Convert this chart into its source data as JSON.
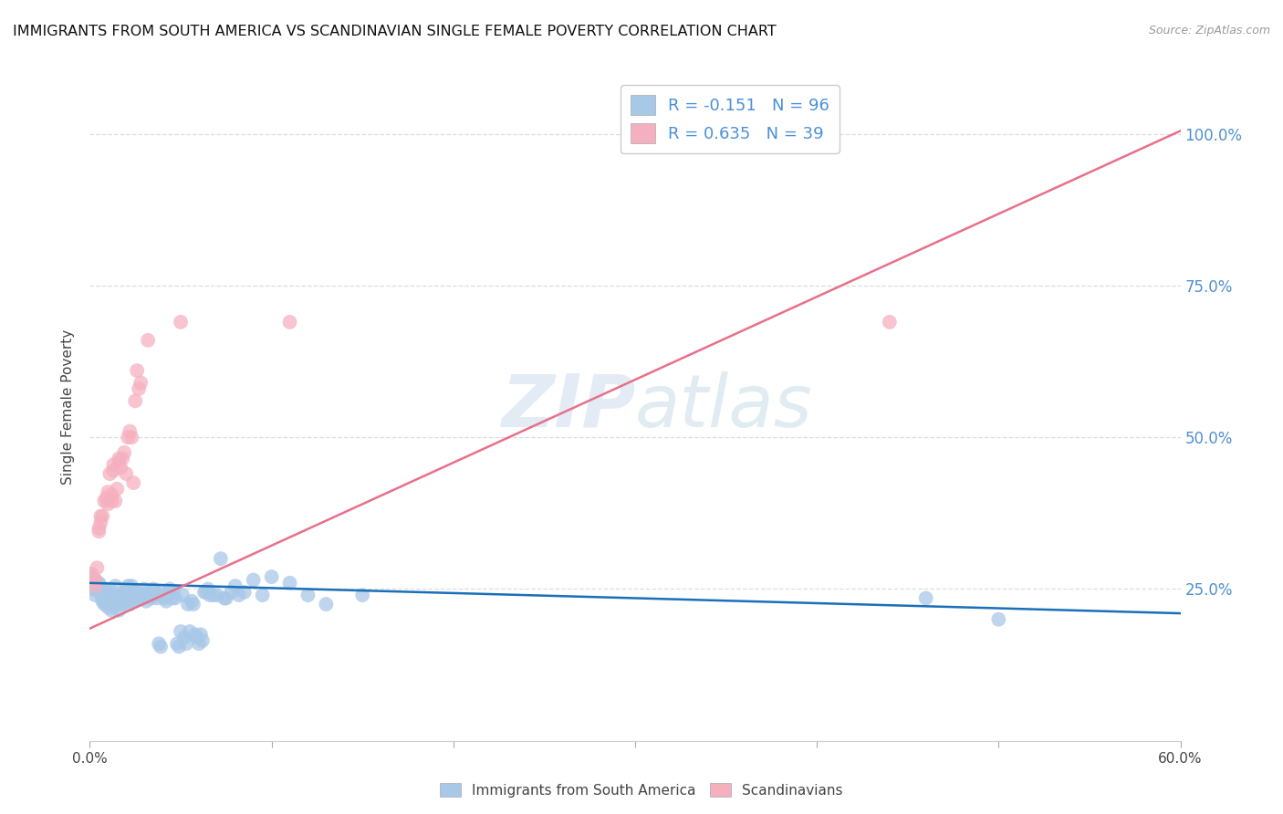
{
  "title": "IMMIGRANTS FROM SOUTH AMERICA VS SCANDINAVIAN SINGLE FEMALE POVERTY CORRELATION CHART",
  "source": "Source: ZipAtlas.com",
  "ylabel": "Single Female Poverty",
  "watermark": "ZIPatlas",
  "legend_blue_label": "Immigrants from South America",
  "legend_pink_label": "Scandinavians",
  "blue_color": "#a8c8e8",
  "pink_color": "#f5b0c0",
  "blue_line_color": "#1a6fba",
  "pink_line_color": "#e8708a",
  "blue_scatter": [
    [
      0.001,
      0.27
    ],
    [
      0.002,
      0.26
    ],
    [
      0.002,
      0.25
    ],
    [
      0.003,
      0.265
    ],
    [
      0.003,
      0.24
    ],
    [
      0.004,
      0.255
    ],
    [
      0.004,
      0.25
    ],
    [
      0.005,
      0.245
    ],
    [
      0.005,
      0.26
    ],
    [
      0.006,
      0.255
    ],
    [
      0.006,
      0.245
    ],
    [
      0.007,
      0.235
    ],
    [
      0.007,
      0.23
    ],
    [
      0.008,
      0.225
    ],
    [
      0.008,
      0.23
    ],
    [
      0.009,
      0.24
    ],
    [
      0.009,
      0.245
    ],
    [
      0.01,
      0.22
    ],
    [
      0.01,
      0.225
    ],
    [
      0.011,
      0.25
    ],
    [
      0.012,
      0.235
    ],
    [
      0.012,
      0.215
    ],
    [
      0.013,
      0.225
    ],
    [
      0.013,
      0.235
    ],
    [
      0.014,
      0.255
    ],
    [
      0.014,
      0.23
    ],
    [
      0.015,
      0.225
    ],
    [
      0.016,
      0.215
    ],
    [
      0.016,
      0.23
    ],
    [
      0.017,
      0.24
    ],
    [
      0.018,
      0.225
    ],
    [
      0.019,
      0.245
    ],
    [
      0.02,
      0.25
    ],
    [
      0.021,
      0.24
    ],
    [
      0.021,
      0.255
    ],
    [
      0.022,
      0.23
    ],
    [
      0.022,
      0.225
    ],
    [
      0.023,
      0.255
    ],
    [
      0.023,
      0.23
    ],
    [
      0.024,
      0.245
    ],
    [
      0.024,
      0.23
    ],
    [
      0.025,
      0.23
    ],
    [
      0.025,
      0.24
    ],
    [
      0.026,
      0.245
    ],
    [
      0.027,
      0.24
    ],
    [
      0.028,
      0.235
    ],
    [
      0.029,
      0.24
    ],
    [
      0.03,
      0.25
    ],
    [
      0.03,
      0.235
    ],
    [
      0.031,
      0.23
    ],
    [
      0.032,
      0.245
    ],
    [
      0.033,
      0.24
    ],
    [
      0.034,
      0.235
    ],
    [
      0.035,
      0.24
    ],
    [
      0.035,
      0.25
    ],
    [
      0.036,
      0.245
    ],
    [
      0.037,
      0.235
    ],
    [
      0.038,
      0.16
    ],
    [
      0.039,
      0.155
    ],
    [
      0.04,
      0.245
    ],
    [
      0.041,
      0.235
    ],
    [
      0.042,
      0.23
    ],
    [
      0.043,
      0.24
    ],
    [
      0.044,
      0.25
    ],
    [
      0.045,
      0.235
    ],
    [
      0.046,
      0.245
    ],
    [
      0.047,
      0.235
    ],
    [
      0.048,
      0.16
    ],
    [
      0.049,
      0.155
    ],
    [
      0.05,
      0.18
    ],
    [
      0.051,
      0.24
    ],
    [
      0.052,
      0.17
    ],
    [
      0.053,
      0.16
    ],
    [
      0.054,
      0.225
    ],
    [
      0.055,
      0.18
    ],
    [
      0.056,
      0.23
    ],
    [
      0.057,
      0.225
    ],
    [
      0.058,
      0.175
    ],
    [
      0.059,
      0.17
    ],
    [
      0.06,
      0.16
    ],
    [
      0.061,
      0.175
    ],
    [
      0.062,
      0.165
    ],
    [
      0.063,
      0.245
    ],
    [
      0.064,
      0.245
    ],
    [
      0.065,
      0.25
    ],
    [
      0.066,
      0.24
    ],
    [
      0.068,
      0.24
    ],
    [
      0.07,
      0.24
    ],
    [
      0.072,
      0.3
    ],
    [
      0.074,
      0.235
    ],
    [
      0.075,
      0.235
    ],
    [
      0.078,
      0.245
    ],
    [
      0.08,
      0.255
    ],
    [
      0.082,
      0.24
    ],
    [
      0.085,
      0.245
    ],
    [
      0.09,
      0.265
    ],
    [
      0.095,
      0.24
    ],
    [
      0.1,
      0.27
    ],
    [
      0.11,
      0.26
    ],
    [
      0.12,
      0.24
    ],
    [
      0.13,
      0.225
    ],
    [
      0.15,
      0.24
    ],
    [
      0.46,
      0.235
    ],
    [
      0.5,
      0.2
    ]
  ],
  "pink_scatter": [
    [
      0.001,
      0.275
    ],
    [
      0.002,
      0.265
    ],
    [
      0.003,
      0.255
    ],
    [
      0.003,
      0.265
    ],
    [
      0.004,
      0.285
    ],
    [
      0.005,
      0.35
    ],
    [
      0.005,
      0.345
    ],
    [
      0.006,
      0.36
    ],
    [
      0.006,
      0.37
    ],
    [
      0.007,
      0.37
    ],
    [
      0.008,
      0.395
    ],
    [
      0.009,
      0.4
    ],
    [
      0.01,
      0.39
    ],
    [
      0.01,
      0.41
    ],
    [
      0.011,
      0.44
    ],
    [
      0.012,
      0.395
    ],
    [
      0.012,
      0.405
    ],
    [
      0.013,
      0.445
    ],
    [
      0.013,
      0.455
    ],
    [
      0.014,
      0.395
    ],
    [
      0.015,
      0.415
    ],
    [
      0.016,
      0.46
    ],
    [
      0.016,
      0.465
    ],
    [
      0.017,
      0.45
    ],
    [
      0.018,
      0.465
    ],
    [
      0.019,
      0.475
    ],
    [
      0.02,
      0.44
    ],
    [
      0.021,
      0.5
    ],
    [
      0.022,
      0.51
    ],
    [
      0.023,
      0.5
    ],
    [
      0.024,
      0.425
    ],
    [
      0.025,
      0.56
    ],
    [
      0.026,
      0.61
    ],
    [
      0.027,
      0.58
    ],
    [
      0.028,
      0.59
    ],
    [
      0.032,
      0.66
    ],
    [
      0.05,
      0.69
    ],
    [
      0.11,
      0.69
    ],
    [
      0.44,
      0.69
    ]
  ],
  "blue_line_x": [
    0.0,
    0.6
  ],
  "blue_line_y": [
    0.26,
    0.21
  ],
  "pink_line_x": [
    0.0,
    0.6
  ],
  "pink_line_y": [
    0.185,
    1.005
  ],
  "xlim": [
    0.0,
    0.6
  ],
  "ylim": [
    0.0,
    1.1
  ],
  "yticks": [
    0.25,
    0.5,
    0.75,
    1.0
  ],
  "ytick_labels": [
    "25.0%",
    "50.0%",
    "75.0%",
    "100.0%"
  ],
  "xticks": [
    0.0,
    0.1,
    0.2,
    0.3,
    0.4,
    0.5,
    0.6
  ],
  "xtick_labels": [
    "0.0%",
    "",
    "",
    "",
    "",
    "",
    "60.0%"
  ],
  "background_color": "#ffffff",
  "grid_color": "#dddddd"
}
